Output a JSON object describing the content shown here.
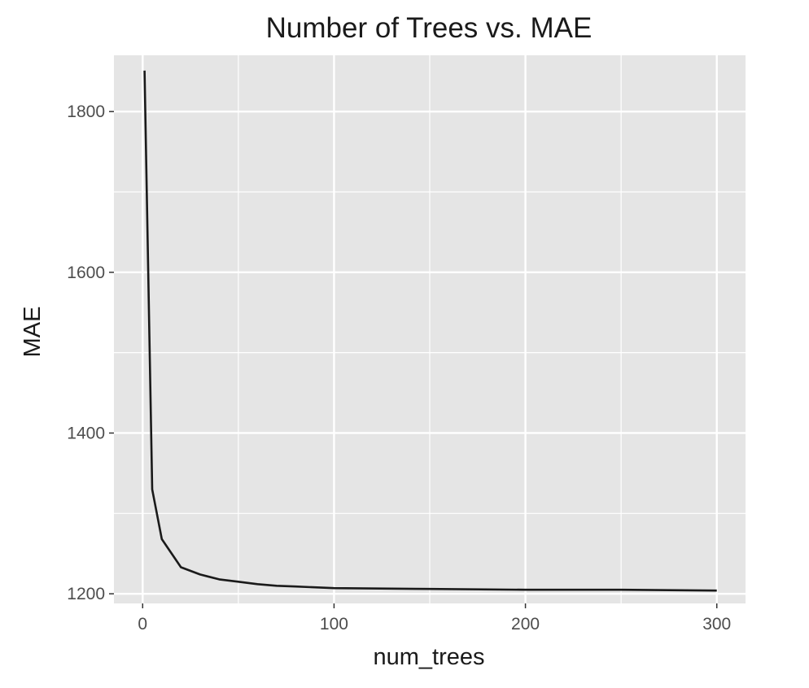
{
  "chart_data": {
    "type": "line",
    "title": "Number of Trees vs. MAE",
    "xlabel": "num_trees",
    "ylabel": "MAE",
    "xlim": [
      -15,
      315
    ],
    "ylim": [
      1188,
      1870
    ],
    "x_ticks": [
      0,
      100,
      200,
      300
    ],
    "y_ticks": [
      1200,
      1400,
      1600,
      1800
    ],
    "x_minor": [
      50,
      150,
      250
    ],
    "y_minor": [
      1300,
      1500,
      1700
    ],
    "grid": true,
    "legend": "none",
    "colors": {
      "panel": "#e5e5e5",
      "grid": "#ffffff",
      "line": "#1a1a1a"
    },
    "series": [
      {
        "x": [
          1,
          5,
          10,
          20,
          30,
          40,
          50,
          60,
          70,
          80,
          90,
          100,
          150,
          200,
          250,
          300
        ],
        "values": [
          1851,
          1330,
          1268,
          1233,
          1224,
          1218,
          1215,
          1212,
          1210,
          1209,
          1208,
          1207,
          1206,
          1205,
          1205,
          1204
        ]
      }
    ]
  }
}
